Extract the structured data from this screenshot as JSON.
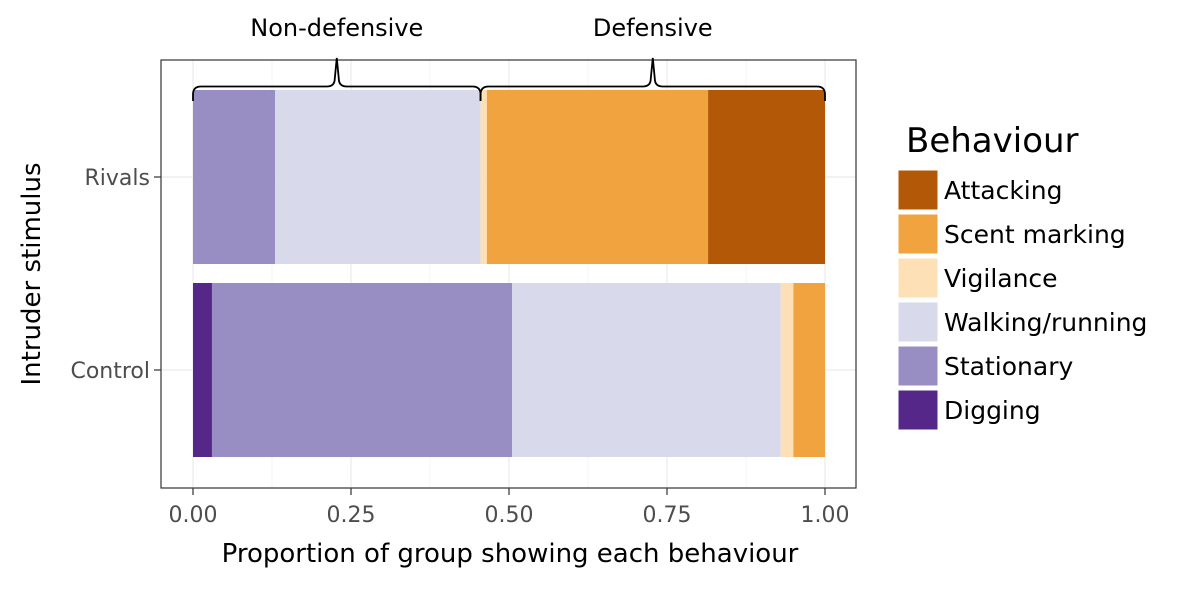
{
  "chart_data": {
    "type": "bar",
    "orientation": "horizontal",
    "stacked": true,
    "xlabel": "Proportion of group showing each behaviour",
    "ylabel": "Intruder stimulus",
    "xlim": [
      0,
      1
    ],
    "xticks": [
      "0.00",
      "0.25",
      "0.50",
      "0.75",
      "1.00"
    ],
    "xtick_values": [
      0,
      0.25,
      0.5,
      0.75,
      1
    ],
    "categories": [
      "Rivals",
      "Control"
    ],
    "grid": true,
    "legend_position": "right",
    "legend_title": "Behaviour",
    "series": [
      {
        "name": "Digging",
        "color": "#542788",
        "values": [
          0.0,
          0.03
        ]
      },
      {
        "name": "Stationary",
        "color": "#998ec3",
        "values": [
          0.13,
          0.475
        ]
      },
      {
        "name": "Walking/running",
        "color": "#d8daeb",
        "values": [
          0.325,
          0.425
        ]
      },
      {
        "name": "Vigilance",
        "color": "#fee0b6",
        "values": [
          0.01,
          0.02
        ]
      },
      {
        "name": "Scent marking",
        "color": "#f1a340",
        "values": [
          0.35,
          0.05
        ]
      },
      {
        "name": "Attacking",
        "color": "#b35806",
        "values": [
          0.185,
          0.0
        ]
      }
    ],
    "legend_order": [
      "Attacking",
      "Scent marking",
      "Vigilance",
      "Walking/running",
      "Stationary",
      "Digging"
    ],
    "annotations": [
      {
        "label": "Non-defensive",
        "from": 0,
        "to": 0.455
      },
      {
        "label": "Defensive",
        "from": 0.455,
        "to": 1
      }
    ]
  }
}
